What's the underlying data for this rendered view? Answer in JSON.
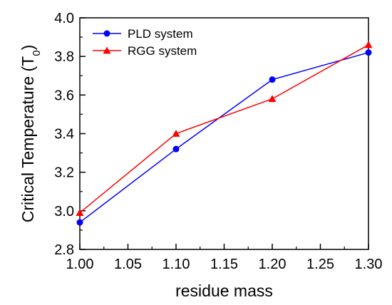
{
  "chart_data": {
    "type": "line",
    "title": "",
    "xlabel": "residue mass",
    "ylabel": "Critical Temperature (T",
    "ylabel_subscript": "0",
    "ylabel_suffix": ")",
    "x": [
      1.0,
      1.1,
      1.2,
      1.3
    ],
    "xlim": [
      1.0,
      1.3
    ],
    "ylim": [
      2.8,
      4.0
    ],
    "xticks": [
      "1.00",
      "1.05",
      "1.10",
      "1.15",
      "1.20",
      "1.25",
      "1.30"
    ],
    "yticks": [
      "2.8",
      "3.0",
      "3.2",
      "3.4",
      "3.6",
      "3.8",
      "4.0"
    ],
    "grid": false,
    "legend_position": "top-left",
    "series": [
      {
        "name": "PLD system",
        "values": [
          2.94,
          3.32,
          3.68,
          3.82
        ],
        "color": "#0000ff",
        "marker": "circle"
      },
      {
        "name": "RGG system",
        "values": [
          2.99,
          3.4,
          3.58,
          3.86
        ],
        "color": "#ff0000",
        "marker": "triangle"
      }
    ]
  }
}
